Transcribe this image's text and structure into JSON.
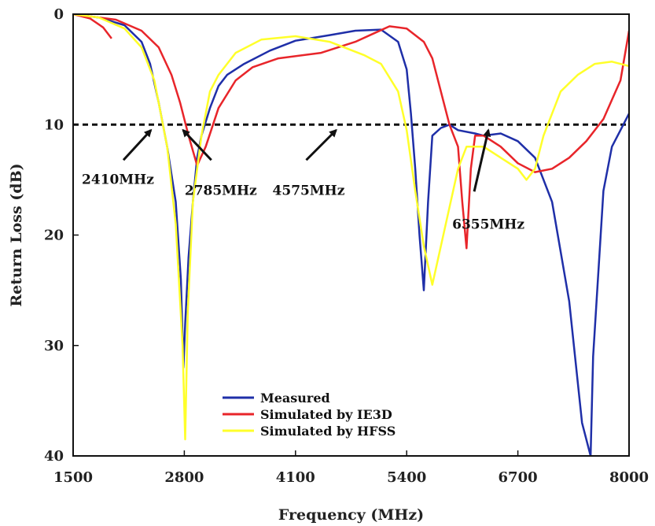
{
  "chart_data": {
    "type": "line",
    "title": "",
    "xlabel": "Frequency (MHz)",
    "ylabel": "Return Loss (dB)",
    "xlim": [
      1500,
      8000
    ],
    "ylim": [
      0,
      40
    ],
    "y_inverted": true,
    "x_ticks": [
      "1500",
      "2800",
      "4100",
      "5400",
      "6700",
      "8000"
    ],
    "x_tick_values": [
      1500,
      2800,
      4100,
      5400,
      6700,
      8000
    ],
    "y_ticks": [
      "0",
      "10",
      "20",
      "30",
      "40"
    ],
    "y_tick_values": [
      0,
      10,
      20,
      30,
      40
    ],
    "grid": false,
    "legend_position": "bottom-center",
    "reference_line": {
      "y": 10,
      "style": "dashed",
      "color": "#111111"
    },
    "annotations": [
      {
        "label": "2410MHz",
        "x": 2410,
        "y": 10
      },
      {
        "label": "2785MHz",
        "x": 2785,
        "y": 10
      },
      {
        "label": "4575MHz",
        "x": 4575,
        "y": 10
      },
      {
        "label": "6355MHz",
        "x": 6355,
        "y": 10
      }
    ],
    "series": [
      {
        "name": "Measured",
        "color": "#1f2fa8",
        "points": [
          [
            1500,
            0
          ],
          [
            1800,
            0.3
          ],
          [
            2100,
            1
          ],
          [
            2300,
            2.5
          ],
          [
            2400,
            4.5
          ],
          [
            2500,
            8
          ],
          [
            2600,
            12
          ],
          [
            2700,
            17
          ],
          [
            2760,
            24
          ],
          [
            2790,
            32
          ],
          [
            2810,
            28
          ],
          [
            2850,
            22
          ],
          [
            2900,
            17
          ],
          [
            2950,
            13
          ],
          [
            3000,
            11
          ],
          [
            3100,
            8.5
          ],
          [
            3200,
            6.5
          ],
          [
            3300,
            5.5
          ],
          [
            3500,
            4.5
          ],
          [
            3800,
            3.3
          ],
          [
            4100,
            2.4
          ],
          [
            4500,
            1.9
          ],
          [
            4800,
            1.5
          ],
          [
            5100,
            1.4
          ],
          [
            5300,
            2.5
          ],
          [
            5400,
            5
          ],
          [
            5450,
            9
          ],
          [
            5500,
            14
          ],
          [
            5550,
            20
          ],
          [
            5600,
            25
          ],
          [
            5650,
            17
          ],
          [
            5700,
            11
          ],
          [
            5800,
            10.3
          ],
          [
            5900,
            10
          ],
          [
            6000,
            10.5
          ],
          [
            6200,
            10.8
          ],
          [
            6300,
            11
          ],
          [
            6500,
            10.8
          ],
          [
            6700,
            11.5
          ],
          [
            6900,
            13
          ],
          [
            7100,
            17
          ],
          [
            7300,
            26
          ],
          [
            7450,
            37
          ],
          [
            7550,
            40
          ],
          [
            7580,
            31
          ],
          [
            7700,
            16
          ],
          [
            7800,
            12
          ],
          [
            7900,
            10.5
          ],
          [
            8000,
            9
          ]
        ]
      },
      {
        "name": "Simulated by IE3D",
        "color": "#e8252a",
        "points": [
          [
            1500,
            0
          ],
          [
            2000,
            0.5
          ],
          [
            2300,
            1.5
          ],
          [
            2500,
            3
          ],
          [
            2650,
            5.5
          ],
          [
            2750,
            8
          ],
          [
            2850,
            11
          ],
          [
            2950,
            13.7
          ],
          [
            3050,
            12
          ],
          [
            3200,
            8.5
          ],
          [
            3400,
            6
          ],
          [
            3600,
            4.8
          ],
          [
            3900,
            4
          ],
          [
            4400,
            3.5
          ],
          [
            4800,
            2.5
          ],
          [
            5000,
            1.8
          ],
          [
            5200,
            1.1
          ],
          [
            5400,
            1.3
          ],
          [
            5600,
            2.5
          ],
          [
            5700,
            4
          ],
          [
            5800,
            7
          ],
          [
            5900,
            10
          ],
          [
            6000,
            12
          ],
          [
            6050,
            17
          ],
          [
            6100,
            21.2
          ],
          [
            6150,
            14
          ],
          [
            6200,
            11
          ],
          [
            6300,
            11
          ],
          [
            6500,
            12
          ],
          [
            6700,
            13.5
          ],
          [
            6900,
            14.3
          ],
          [
            7100,
            14
          ],
          [
            7300,
            13
          ],
          [
            7500,
            11.5
          ],
          [
            7700,
            9.5
          ],
          [
            7900,
            6
          ],
          [
            8000,
            1.5
          ]
        ],
        "extra_branch": [
          [
            1500,
            0
          ],
          [
            1700,
            0.4
          ],
          [
            1850,
            1.2
          ],
          [
            1950,
            2.2
          ]
        ]
      },
      {
        "name": "Simulated by HFSS",
        "color": "#ffff2a",
        "points": [
          [
            1500,
            0
          ],
          [
            1800,
            0.3
          ],
          [
            2100,
            1.3
          ],
          [
            2300,
            3
          ],
          [
            2450,
            6
          ],
          [
            2600,
            12
          ],
          [
            2700,
            19
          ],
          [
            2780,
            30
          ],
          [
            2810,
            38.5
          ],
          [
            2840,
            27
          ],
          [
            2900,
            17
          ],
          [
            3000,
            11
          ],
          [
            3100,
            7
          ],
          [
            3200,
            5.5
          ],
          [
            3400,
            3.5
          ],
          [
            3700,
            2.3
          ],
          [
            4100,
            2
          ],
          [
            4500,
            2.5
          ],
          [
            4900,
            3.7
          ],
          [
            5100,
            4.5
          ],
          [
            5300,
            7
          ],
          [
            5400,
            10.5
          ],
          [
            5500,
            16
          ],
          [
            5600,
            21
          ],
          [
            5700,
            24.5
          ],
          [
            5800,
            21
          ],
          [
            5900,
            17.5
          ],
          [
            6000,
            14
          ],
          [
            6100,
            12
          ],
          [
            6300,
            12
          ],
          [
            6500,
            13
          ],
          [
            6700,
            14
          ],
          [
            6800,
            15
          ],
          [
            6900,
            14
          ],
          [
            7000,
            11
          ],
          [
            7200,
            7
          ],
          [
            7400,
            5.5
          ],
          [
            7600,
            4.5
          ],
          [
            7800,
            4.3
          ],
          [
            8000,
            4.7
          ]
        ]
      }
    ]
  }
}
